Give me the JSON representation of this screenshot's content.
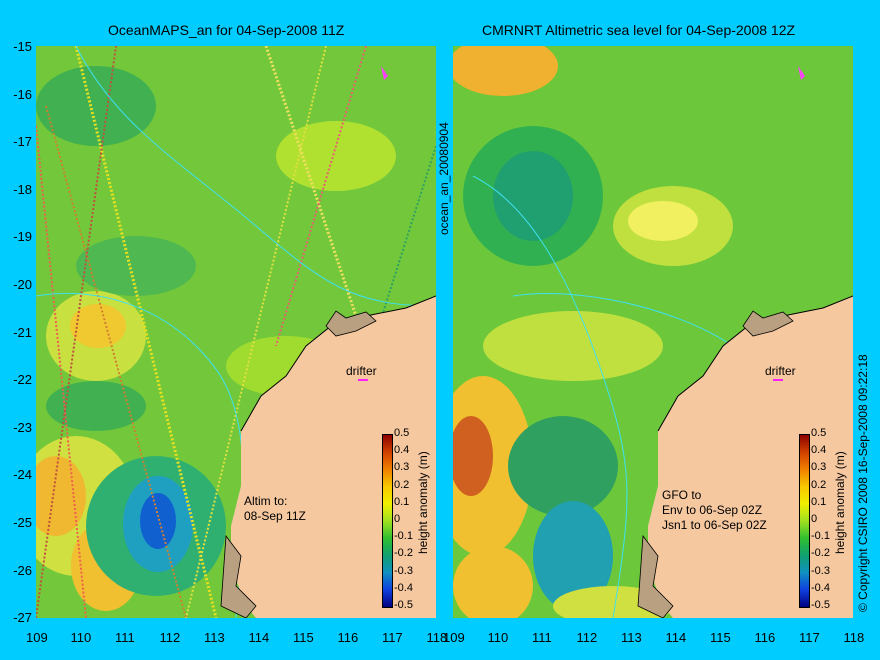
{
  "left_panel": {
    "title": "OceanMAPS_an for 04-Sep-2008 11Z",
    "side_label": "ocean_an_20080904",
    "drifter_label": "drifter",
    "note": "Altim to:\n08-Sep 11Z"
  },
  "right_panel": {
    "title": "CMRNRT Altimetric sea level  for 04-Sep-2008 12Z",
    "drifter_label": "drifter",
    "note": "GFO to\nEnv to 06-Sep 02Z\nJsn1 to 06-Sep 02Z",
    "side_label": "© Copyright CSIRO 2008   16-Sep-2008 09:22:18"
  },
  "axes": {
    "lon_ticks": [
      "109",
      "110",
      "111",
      "112",
      "113",
      "114",
      "115",
      "116",
      "117",
      "118"
    ],
    "lat_ticks": [
      "-15",
      "-16",
      "-17",
      "-18",
      "-19",
      "-20",
      "-21",
      "-22",
      "-23",
      "-24",
      "-25",
      "-26",
      "-27"
    ]
  },
  "colorbar": {
    "label": "height anomaly (m)",
    "ticks": [
      "0.5",
      "0.4",
      "0.3",
      "0.2",
      "0.1",
      "0",
      "-0.1",
      "-0.2",
      "-0.3",
      "-0.4",
      "-0.5"
    ],
    "colors": [
      "#8b0000",
      "#d04000",
      "#f08000",
      "#f8c800",
      "#f0f000",
      "#a0e020",
      "#30c030",
      "#10a070",
      "#1090c0",
      "#1040e0",
      "#000080"
    ]
  }
}
